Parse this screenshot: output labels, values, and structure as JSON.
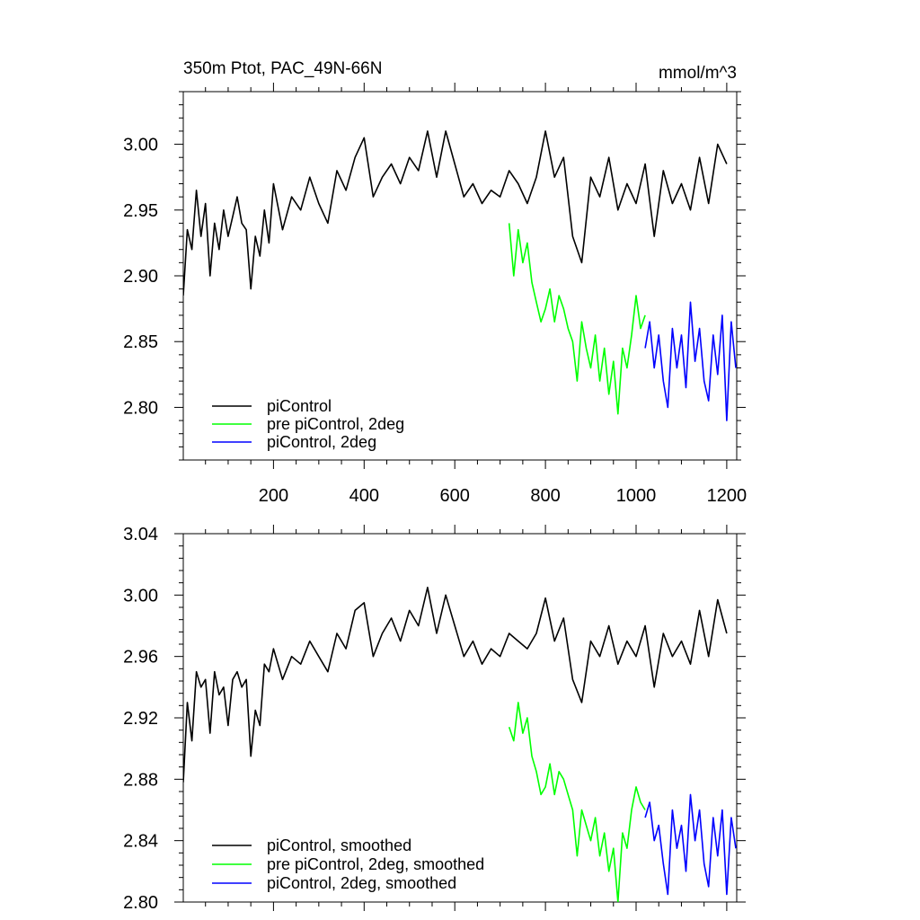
{
  "chart_data": [
    {
      "type": "line",
      "title": "350m Ptot, PAC_49N-66N",
      "units": "mmol/m^3",
      "xlim": [
        1,
        1222
      ],
      "ylim": [
        2.76,
        3.04
      ],
      "xticks": [
        200,
        400,
        600,
        800,
        1000,
        1200
      ],
      "xtick_labels": [
        "200",
        "400",
        "600",
        "800",
        "1000",
        "1200"
      ],
      "yticks": [
        2.8,
        2.85,
        2.9,
        2.95,
        3.0
      ],
      "ytick_labels": [
        "2.80",
        "2.85",
        "2.90",
        "2.95",
        "3.00"
      ],
      "legend_position": "bottom-left",
      "series": [
        {
          "name": "piControl",
          "color": "#000000",
          "x": [
            1,
            10,
            20,
            30,
            40,
            50,
            60,
            70,
            80,
            90,
            100,
            110,
            120,
            130,
            140,
            150,
            160,
            170,
            180,
            190,
            200,
            220,
            240,
            260,
            280,
            300,
            320,
            340,
            360,
            380,
            400,
            420,
            440,
            460,
            480,
            500,
            520,
            540,
            560,
            580,
            600,
            620,
            640,
            660,
            680,
            700,
            720,
            740,
            760,
            780,
            800,
            820,
            840,
            860,
            880,
            900,
            920,
            940,
            960,
            980,
            1000,
            1020,
            1040,
            1060,
            1080,
            1100,
            1120,
            1140,
            1160,
            1180,
            1200
          ],
          "values": [
            2.885,
            2.935,
            2.92,
            2.965,
            2.93,
            2.955,
            2.9,
            2.94,
            2.92,
            2.95,
            2.93,
            2.945,
            2.96,
            2.94,
            2.935,
            2.89,
            2.93,
            2.915,
            2.95,
            2.925,
            2.97,
            2.935,
            2.96,
            2.95,
            2.975,
            2.955,
            2.94,
            2.98,
            2.965,
            2.99,
            3.005,
            2.96,
            2.975,
            2.985,
            2.97,
            2.99,
            2.98,
            3.01,
            2.975,
            3.01,
            2.985,
            2.96,
            2.97,
            2.955,
            2.965,
            2.96,
            2.98,
            2.97,
            2.955,
            2.975,
            3.01,
            2.975,
            2.99,
            2.93,
            2.91,
            2.975,
            2.96,
            2.99,
            2.95,
            2.97,
            2.955,
            2.985,
            2.93,
            2.98,
            2.955,
            2.97,
            2.95,
            2.99,
            2.955,
            3.0,
            2.985
          ]
        },
        {
          "name": "pre piControl, 2deg",
          "color": "#00ff00",
          "x": [
            720,
            730,
            740,
            750,
            760,
            770,
            780,
            790,
            800,
            810,
            820,
            830,
            840,
            850,
            860,
            870,
            880,
            890,
            900,
            910,
            920,
            930,
            940,
            950,
            960,
            970,
            980,
            990,
            1000,
            1010,
            1020
          ],
          "values": [
            2.94,
            2.9,
            2.935,
            2.91,
            2.925,
            2.895,
            2.88,
            2.865,
            2.875,
            2.89,
            2.865,
            2.885,
            2.875,
            2.86,
            2.85,
            2.82,
            2.865,
            2.845,
            2.83,
            2.855,
            2.82,
            2.845,
            2.81,
            2.835,
            2.795,
            2.845,
            2.83,
            2.855,
            2.885,
            2.86,
            2.87
          ]
        },
        {
          "name": "piControl, 2deg",
          "color": "#0000ff",
          "x": [
            1020,
            1030,
            1040,
            1050,
            1060,
            1070,
            1080,
            1090,
            1100,
            1110,
            1120,
            1130,
            1140,
            1150,
            1160,
            1170,
            1180,
            1190,
            1200,
            1210,
            1220
          ],
          "values": [
            2.845,
            2.865,
            2.83,
            2.855,
            2.82,
            2.8,
            2.86,
            2.83,
            2.855,
            2.815,
            2.88,
            2.835,
            2.86,
            2.82,
            2.805,
            2.855,
            2.825,
            2.87,
            2.79,
            2.865,
            2.83
          ]
        }
      ]
    },
    {
      "type": "line",
      "title": "",
      "units": "",
      "xlim": [
        1,
        1222
      ],
      "ylim": [
        2.8,
        3.04
      ],
      "xticks": [
        200,
        400,
        600,
        800,
        1000,
        1200
      ],
      "xtick_labels": [],
      "yticks": [
        2.8,
        2.84,
        2.88,
        2.92,
        2.96,
        3.0,
        3.04
      ],
      "ytick_labels": [
        "2.80",
        "2.84",
        "2.88",
        "2.92",
        "2.96",
        "3.00",
        "3.04"
      ],
      "legend_position": "bottom-left",
      "series": [
        {
          "name": "piControl, smoothed",
          "color": "#000000",
          "x": [
            1,
            10,
            20,
            30,
            40,
            50,
            60,
            70,
            80,
            90,
            100,
            110,
            120,
            130,
            140,
            150,
            160,
            170,
            180,
            190,
            200,
            220,
            240,
            260,
            280,
            300,
            320,
            340,
            360,
            380,
            400,
            420,
            440,
            460,
            480,
            500,
            520,
            540,
            560,
            580,
            600,
            620,
            640,
            660,
            680,
            700,
            720,
            740,
            760,
            780,
            800,
            820,
            840,
            860,
            880,
            900,
            920,
            940,
            960,
            980,
            1000,
            1020,
            1040,
            1060,
            1080,
            1100,
            1120,
            1140,
            1160,
            1180,
            1200
          ],
          "values": [
            2.878,
            2.93,
            2.905,
            2.95,
            2.94,
            2.945,
            2.91,
            2.95,
            2.935,
            2.94,
            2.915,
            2.945,
            2.95,
            2.94,
            2.945,
            2.895,
            2.925,
            2.915,
            2.955,
            2.95,
            2.965,
            2.945,
            2.96,
            2.955,
            2.97,
            2.96,
            2.95,
            2.975,
            2.965,
            2.99,
            2.995,
            2.96,
            2.975,
            2.985,
            2.97,
            2.99,
            2.98,
            3.005,
            2.975,
            3.0,
            2.98,
            2.96,
            2.97,
            2.955,
            2.965,
            2.96,
            2.975,
            2.97,
            2.965,
            2.975,
            2.998,
            2.97,
            2.985,
            2.945,
            2.93,
            2.97,
            2.96,
            2.98,
            2.955,
            2.97,
            2.96,
            2.98,
            2.94,
            2.975,
            2.96,
            2.97,
            2.955,
            2.99,
            2.96,
            2.997,
            2.975
          ]
        },
        {
          "name": "pre piControl, 2deg, smoothed",
          "color": "#00ff00",
          "x": [
            720,
            730,
            740,
            750,
            760,
            770,
            780,
            790,
            800,
            810,
            820,
            830,
            840,
            850,
            860,
            870,
            880,
            890,
            900,
            910,
            920,
            930,
            940,
            950,
            960,
            970,
            980,
            990,
            1000,
            1010,
            1020
          ],
          "values": [
            2.914,
            2.905,
            2.93,
            2.91,
            2.92,
            2.895,
            2.885,
            2.87,
            2.875,
            2.89,
            2.87,
            2.885,
            2.88,
            2.87,
            2.86,
            2.83,
            2.86,
            2.85,
            2.84,
            2.855,
            2.83,
            2.845,
            2.82,
            2.835,
            2.8,
            2.845,
            2.835,
            2.86,
            2.875,
            2.865,
            2.86
          ]
        },
        {
          "name": "piControl, 2deg, smoothed",
          "color": "#0000ff",
          "x": [
            1020,
            1030,
            1040,
            1050,
            1060,
            1070,
            1080,
            1090,
            1100,
            1110,
            1120,
            1130,
            1140,
            1150,
            1160,
            1170,
            1180,
            1190,
            1200,
            1210,
            1220
          ],
          "values": [
            2.855,
            2.865,
            2.84,
            2.85,
            2.825,
            2.805,
            2.86,
            2.835,
            2.85,
            2.82,
            2.87,
            2.84,
            2.86,
            2.825,
            2.81,
            2.855,
            2.83,
            2.86,
            2.805,
            2.855,
            2.835
          ]
        }
      ]
    }
  ]
}
